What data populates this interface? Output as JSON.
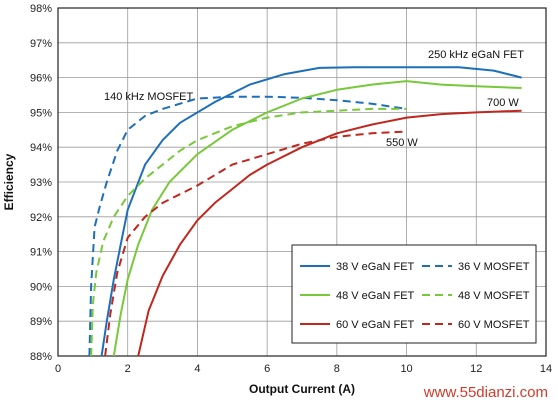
{
  "chart_data": {
    "type": "line",
    "xlabel": "Output Current (A)",
    "ylabel": "Efficiency",
    "xlim": [
      0,
      14
    ],
    "ylim": [
      88,
      98
    ],
    "x_ticks": [
      "0",
      "2",
      "4",
      "6",
      "8",
      "10",
      "12",
      "14"
    ],
    "y_ticks": [
      "88%",
      "89%",
      "90%",
      "91%",
      "92%",
      "93%",
      "94%",
      "95%",
      "96%",
      "97%",
      "98%"
    ],
    "grid": true,
    "legend_position": "bottom-right",
    "annotations": [
      {
        "text": "250 kHz eGaN FET",
        "x": 12.2,
        "y": 96.6
      },
      {
        "text": "140 kHz MOSFET",
        "x": 2.7,
        "y": 95.4
      },
      {
        "text": "700 W",
        "x": 12.4,
        "y": 95.3
      },
      {
        "text": "550 W",
        "x": 9.2,
        "y": 94.1
      }
    ],
    "series": [
      {
        "name": "38 V eGaN FET",
        "color": "#1e6fba",
        "dash": false,
        "x": [
          1.25,
          1.4,
          1.6,
          1.8,
          2.0,
          2.5,
          3.0,
          3.5,
          4.5,
          5.5,
          6.5,
          7.5,
          8.5,
          9.5,
          10.5,
          11.5,
          12.5,
          13.3
        ],
        "y": [
          88.0,
          89.0,
          90.2,
          91.2,
          92.2,
          93.5,
          94.2,
          94.7,
          95.3,
          95.8,
          96.1,
          96.28,
          96.3,
          96.3,
          96.3,
          96.3,
          96.2,
          96.0
        ]
      },
      {
        "name": "36 V MOSFET",
        "color": "#1e6fba",
        "dash": true,
        "x": [
          0.9,
          0.95,
          1.05,
          1.2,
          1.4,
          1.7,
          2.0,
          2.5,
          3.0,
          4.0,
          5.0,
          6.0,
          7.0,
          8.0,
          9.0,
          10.0
        ],
        "y": [
          88.0,
          90.0,
          91.7,
          92.3,
          93.0,
          93.9,
          94.5,
          94.9,
          95.1,
          95.4,
          95.45,
          95.45,
          95.42,
          95.35,
          95.25,
          95.1
        ]
      },
      {
        "name": "48 V eGaN FET",
        "color": "#77c93a",
        "dash": false,
        "x": [
          1.6,
          1.8,
          2.0,
          2.3,
          2.7,
          3.2,
          4.0,
          5.0,
          6.0,
          7.0,
          8.0,
          9.0,
          10.0,
          11.0,
          12.0,
          13.3
        ],
        "y": [
          88.0,
          89.2,
          90.2,
          91.2,
          92.2,
          93.0,
          93.8,
          94.5,
          95.0,
          95.4,
          95.65,
          95.8,
          95.9,
          95.8,
          95.75,
          95.7
        ]
      },
      {
        "name": "48 V MOSFET",
        "color": "#77c93a",
        "dash": true,
        "x": [
          0.95,
          1.0,
          1.1,
          1.3,
          1.6,
          2.0,
          2.5,
          3.0,
          3.5,
          4.0,
          5.0,
          6.0,
          7.0,
          8.0,
          9.0,
          10.0
        ],
        "y": [
          88.0,
          89.5,
          90.4,
          91.3,
          92.0,
          92.6,
          93.1,
          93.5,
          93.9,
          94.2,
          94.6,
          94.85,
          95.0,
          95.05,
          95.1,
          95.1
        ]
      },
      {
        "name": "60 V eGaN FET",
        "color": "#c0271f",
        "dash": false,
        "x": [
          2.3,
          2.6,
          3.0,
          3.5,
          4.0,
          4.5,
          5.0,
          5.5,
          6.0,
          7.0,
          8.0,
          9.0,
          10.0,
          11.0,
          12.0,
          13.3
        ],
        "y": [
          88.0,
          89.3,
          90.3,
          91.2,
          91.9,
          92.4,
          92.8,
          93.2,
          93.5,
          94.0,
          94.4,
          94.65,
          94.85,
          94.95,
          95.0,
          95.05
        ]
      },
      {
        "name": "60 V MOSFET",
        "color": "#c0271f",
        "dash": true,
        "x": [
          1.35,
          1.5,
          1.7,
          2.0,
          2.5,
          3.0,
          4.0,
          5.0,
          6.0,
          7.0,
          8.0,
          9.0,
          10.0
        ],
        "y": [
          88.0,
          89.2,
          90.4,
          91.4,
          92.0,
          92.4,
          92.9,
          93.5,
          93.8,
          94.1,
          94.3,
          94.4,
          94.45
        ]
      }
    ]
  },
  "watermark": "www.55dianzi.com",
  "watermark_color": "#d43a2a"
}
